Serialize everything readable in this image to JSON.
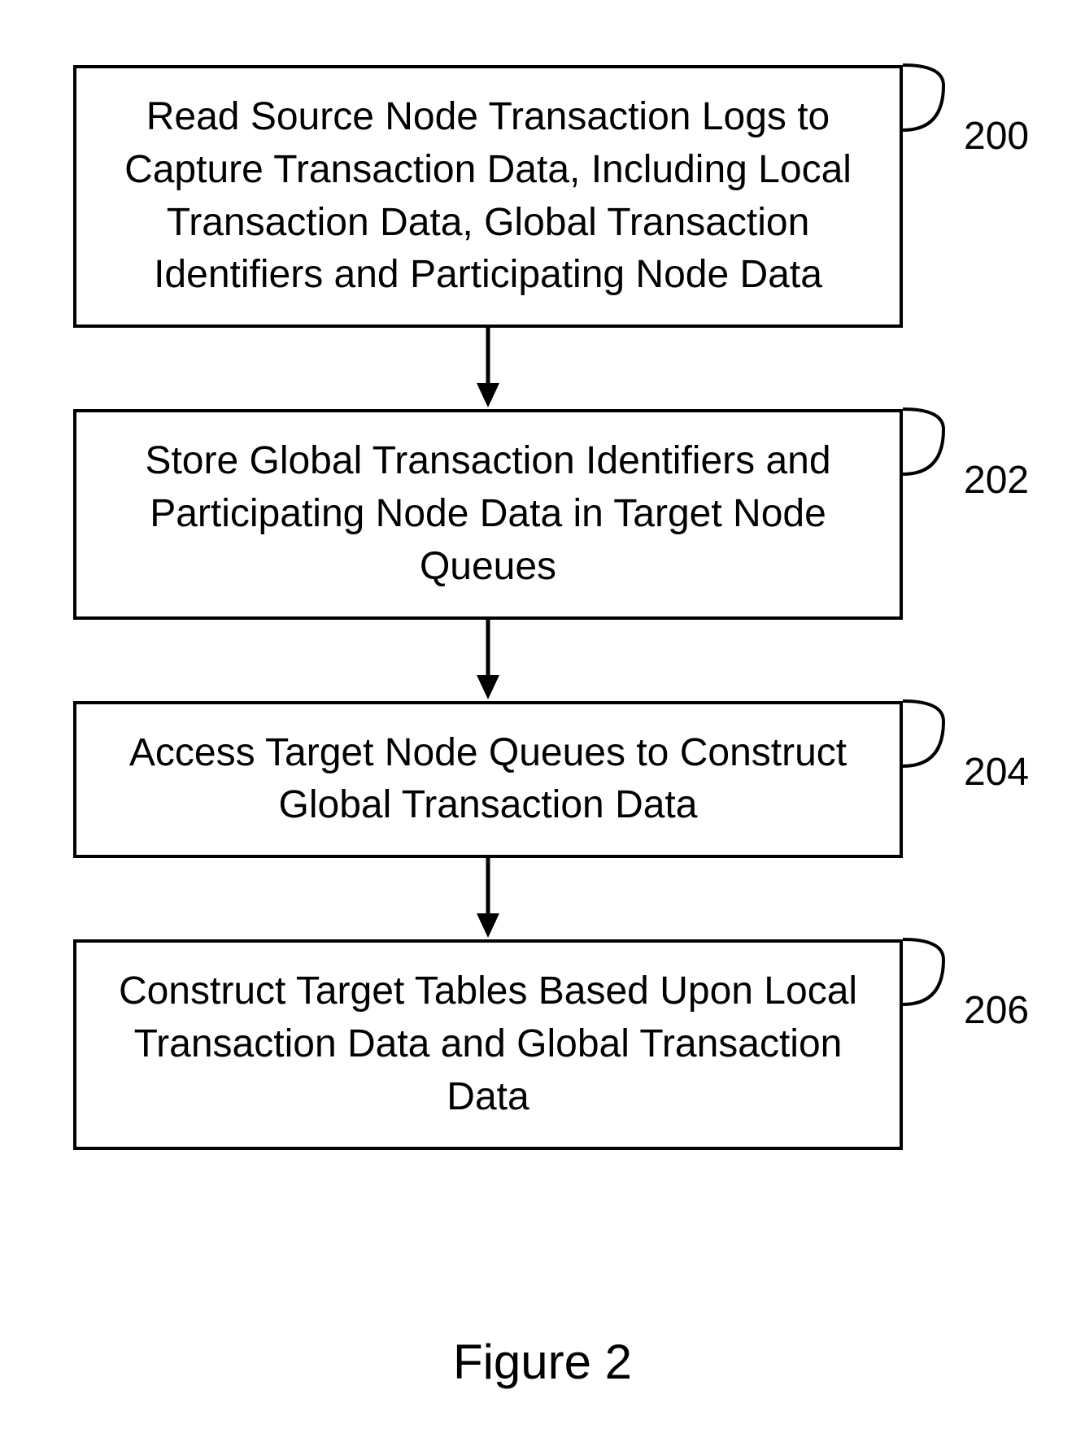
{
  "flowchart": {
    "type": "flowchart",
    "background_color": "#ffffff",
    "border_color": "#000000",
    "border_width": 4,
    "text_color": "#000000",
    "node_font_size": 48,
    "caption_font_size": 60,
    "ref_font_size": 48,
    "arrow_length": 90,
    "arrow_stroke_width": 5,
    "arrowhead_size": 22,
    "nodes": [
      {
        "id": "n1",
        "text": "Read Source Node Transaction Logs to Capture Transaction Data, Including Local Transaction Data, Global Transaction Identifiers and Participating Node Data",
        "ref": "200"
      },
      {
        "id": "n2",
        "text": "Store Global Transaction Identifiers and Participating Node Data in Target Node Queues",
        "ref": "202"
      },
      {
        "id": "n3",
        "text": "Access Target Node Queues to Construct Global Transaction Data",
        "ref": "204"
      },
      {
        "id": "n4",
        "text": "Construct Target Tables Based Upon Local Transaction Data and Global Transaction Data",
        "ref": "206"
      }
    ],
    "caption": "Figure 2"
  }
}
